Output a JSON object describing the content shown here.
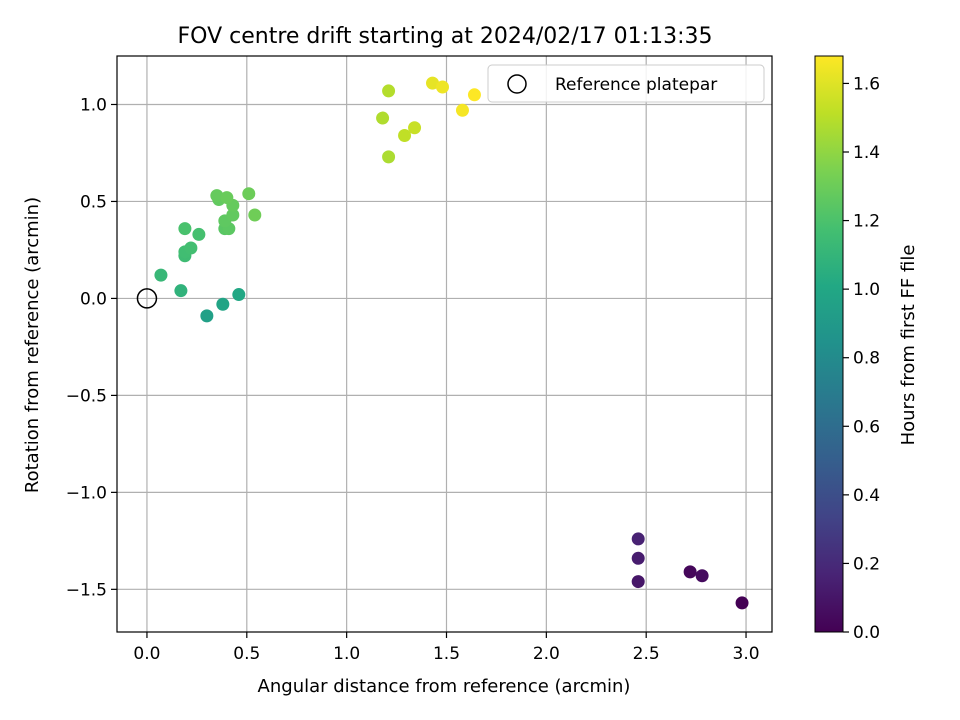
{
  "chart_data": {
    "type": "scatter",
    "title": "FOV centre drift starting at 2024/02/17 01:13:35",
    "xlabel": "Angular distance from reference (arcmin)",
    "ylabel": "Rotation from reference (arcmin)",
    "xlim": [
      -0.15,
      3.13
    ],
    "ylim": [
      -1.72,
      1.25
    ],
    "xticks": [
      0.0,
      0.5,
      1.0,
      1.5,
      2.0,
      2.5,
      3.0
    ],
    "xtick_labels": [
      "0.0",
      "0.5",
      "1.0",
      "1.5",
      "2.0",
      "2.5",
      "3.0"
    ],
    "yticks": [
      1.0,
      0.5,
      0.0,
      -0.5,
      -1.0,
      -1.5
    ],
    "ytick_labels": [
      "1.0",
      "0.5",
      "0.0",
      "−0.5",
      "−1.0",
      "−1.5"
    ],
    "grid": true,
    "legend": {
      "position": "top-right",
      "entries": [
        "Reference platepar"
      ]
    },
    "reference_point": {
      "x": 0.0,
      "y": 0.0
    },
    "colorbar": {
      "label": "Hours from first FF file",
      "colormap": "viridis",
      "range": [
        0.0,
        1.68
      ],
      "ticks": [
        0.0,
        0.2,
        0.4,
        0.6,
        0.8,
        1.0,
        1.2,
        1.4,
        1.6
      ],
      "tick_labels": [
        "0.0",
        "0.2",
        "0.4",
        "0.6",
        "0.8",
        "1.0",
        "1.2",
        "1.4",
        "1.6"
      ]
    },
    "points": [
      {
        "x": 2.98,
        "y": -1.57,
        "c": 0.0
      },
      {
        "x": 2.72,
        "y": -1.41,
        "c": 0.03
      },
      {
        "x": 2.78,
        "y": -1.43,
        "c": 0.05
      },
      {
        "x": 2.46,
        "y": -1.46,
        "c": 0.1
      },
      {
        "x": 2.46,
        "y": -1.34,
        "c": 0.13
      },
      {
        "x": 2.46,
        "y": -1.24,
        "c": 0.16
      },
      {
        "x": 0.3,
        "y": -0.09,
        "c": 0.95
      },
      {
        "x": 0.38,
        "y": -0.03,
        "c": 0.98
      },
      {
        "x": 0.46,
        "y": 0.02,
        "c": 1.0
      },
      {
        "x": 0.17,
        "y": 0.04,
        "c": 1.08
      },
      {
        "x": 0.07,
        "y": 0.12,
        "c": 1.12
      },
      {
        "x": 0.19,
        "y": 0.22,
        "c": 1.15
      },
      {
        "x": 0.19,
        "y": 0.24,
        "c": 1.16
      },
      {
        "x": 0.22,
        "y": 0.26,
        "c": 1.17
      },
      {
        "x": 0.26,
        "y": 0.33,
        "c": 1.18
      },
      {
        "x": 0.19,
        "y": 0.36,
        "c": 1.19
      },
      {
        "x": 0.39,
        "y": 0.36,
        "c": 1.24
      },
      {
        "x": 0.41,
        "y": 0.36,
        "c": 1.25
      },
      {
        "x": 0.39,
        "y": 0.4,
        "c": 1.26
      },
      {
        "x": 0.43,
        "y": 0.43,
        "c": 1.27
      },
      {
        "x": 0.43,
        "y": 0.48,
        "c": 1.28
      },
      {
        "x": 0.36,
        "y": 0.51,
        "c": 1.27
      },
      {
        "x": 0.35,
        "y": 0.53,
        "c": 1.28
      },
      {
        "x": 0.4,
        "y": 0.52,
        "c": 1.29
      },
      {
        "x": 0.51,
        "y": 0.54,
        "c": 1.3
      },
      {
        "x": 0.54,
        "y": 0.43,
        "c": 1.31
      },
      {
        "x": 1.21,
        "y": 0.73,
        "c": 1.47
      },
      {
        "x": 1.18,
        "y": 0.93,
        "c": 1.48
      },
      {
        "x": 1.21,
        "y": 1.07,
        "c": 1.49
      },
      {
        "x": 1.29,
        "y": 0.84,
        "c": 1.52
      },
      {
        "x": 1.34,
        "y": 0.88,
        "c": 1.54
      },
      {
        "x": 1.43,
        "y": 1.11,
        "c": 1.62
      },
      {
        "x": 1.48,
        "y": 1.09,
        "c": 1.64
      },
      {
        "x": 1.58,
        "y": 0.97,
        "c": 1.66
      },
      {
        "x": 1.64,
        "y": 1.05,
        "c": 1.68
      }
    ]
  }
}
